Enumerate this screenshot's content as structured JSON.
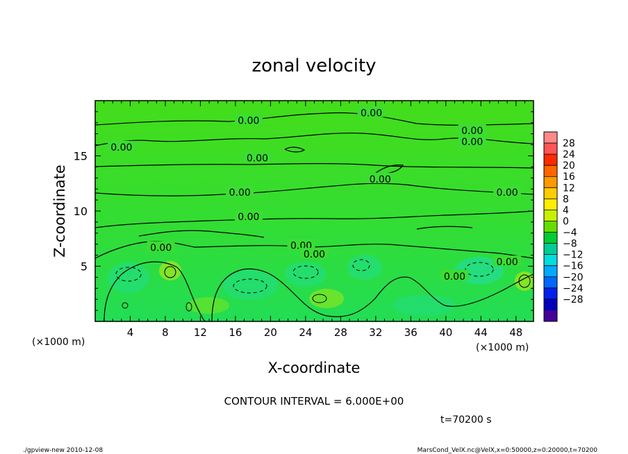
{
  "chart_data": {
    "type": "heatmap",
    "title": "zonal velocity",
    "xlabel": "X-coordinate",
    "ylabel": "Z-coordinate",
    "x_unit_left": "(×1000 m)",
    "x_unit_right": "(×1000 m)",
    "xlim": [
      0,
      50
    ],
    "ylim": [
      0,
      20
    ],
    "x_ticks": [
      "4",
      "8",
      "12",
      "16",
      "20",
      "24",
      "28",
      "32",
      "36",
      "40",
      "44",
      "48"
    ],
    "x_tick_values": [
      4,
      8,
      12,
      16,
      20,
      24,
      28,
      32,
      36,
      40,
      44,
      48
    ],
    "y_ticks": [
      "5",
      "10",
      "15"
    ],
    "y_tick_values": [
      5,
      10,
      15
    ],
    "contour_interval_text": "CONTOUR INTERVAL = 6.000E+00",
    "time_text": "t=70200 s",
    "contour_level_labels": [
      {
        "text": "0.00",
        "x": 17.5,
        "z": 18.2
      },
      {
        "text": "0.00",
        "x": 31.5,
        "z": 18.9
      },
      {
        "text": "0.00",
        "x": 43.0,
        "z": 17.3
      },
      {
        "text": "0.00",
        "x": 43.0,
        "z": 16.3
      },
      {
        "text": "0.00",
        "x": 3.0,
        "z": 15.8
      },
      {
        "text": "0.00",
        "x": 18.5,
        "z": 14.8
      },
      {
        "text": "0.00",
        "x": 32.5,
        "z": 12.9
      },
      {
        "text": "0.00",
        "x": 16.5,
        "z": 11.7
      },
      {
        "text": "0.00",
        "x": 47.0,
        "z": 11.7
      },
      {
        "text": "0.00",
        "x": 17.5,
        "z": 9.5
      },
      {
        "text": "0.00",
        "x": 7.5,
        "z": 6.7
      },
      {
        "text": "0.00",
        "x": 23.5,
        "z": 6.9
      },
      {
        "text": "0.00",
        "x": 25.0,
        "z": 6.1
      },
      {
        "text": "0.00",
        "x": 47.0,
        "z": 5.4
      },
      {
        "text": "0.00",
        "x": 41.0,
        "z": 4.1
      }
    ],
    "colorbar": {
      "labels": [
        "28",
        "24",
        "20",
        "16",
        "12",
        "8",
        "4",
        "0",
        "−4",
        "−8",
        "−12",
        "−16",
        "−20",
        "−24",
        "−28"
      ],
      "colors": [
        "#ff8888",
        "#ff5555",
        "#ff2a00",
        "#ff6600",
        "#ff9900",
        "#ffcc00",
        "#ffee00",
        "#c8f000",
        "#66dd00",
        "#00cc33",
        "#00cc99",
        "#00dddd",
        "#00aaff",
        "#0066ff",
        "#0022ee",
        "#0000bb",
        "#440099"
      ],
      "range": [
        -28,
        28
      ]
    },
    "grid": false,
    "legend": "colorbar-right"
  },
  "footer": {
    "left": "./gpview-new  2010-12-08",
    "right": "MarsCond_VelX.nc@VelX,x=0:50000,z=0:20000,t=70200"
  }
}
